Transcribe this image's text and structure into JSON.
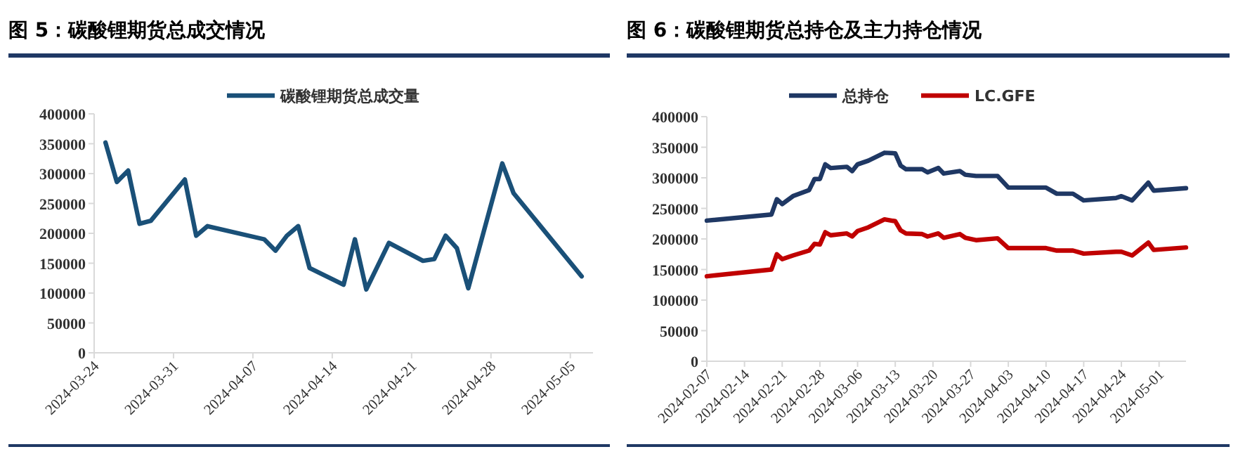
{
  "chart_data": [
    {
      "type": "line",
      "title": "图 5：碳酸锂期货总成交情况",
      "legend": "top",
      "x": [
        "2024-03-25",
        "2024-03-26",
        "2024-03-27",
        "2024-03-28",
        "2024-03-29",
        "2024-04-01",
        "2024-04-02",
        "2024-04-03",
        "2024-04-08",
        "2024-04-09",
        "2024-04-10",
        "2024-04-11",
        "2024-04-12",
        "2024-04-15",
        "2024-04-16",
        "2024-04-17",
        "2024-04-19",
        "2024-04-22",
        "2024-04-23",
        "2024-04-24",
        "2024-04-25",
        "2024-04-26",
        "2024-04-29",
        "2024-04-30",
        "2024-05-06"
      ],
      "xlim": [
        "2024-03-24",
        "2024-05-07"
      ],
      "xticks": [
        "2024-03-24",
        "2024-03-31",
        "2024-04-07",
        "2024-04-14",
        "2024-04-21",
        "2024-04-28",
        "2024-05-05"
      ],
      "ylim": [
        0,
        400000
      ],
      "yticks": [
        0,
        50000,
        100000,
        150000,
        200000,
        250000,
        300000,
        350000,
        400000
      ],
      "series": [
        {
          "name": "碳酸锂期货总成交量",
          "color": "#1a5078",
          "values": [
            352000,
            286000,
            305000,
            216000,
            221000,
            290000,
            196000,
            212000,
            190000,
            171000,
            196000,
            212000,
            142000,
            114000,
            190000,
            106000,
            184000,
            154000,
            157000,
            196000,
            175000,
            108000,
            317000,
            267000,
            128000
          ]
        }
      ]
    },
    {
      "type": "line",
      "title": "图 6：碳酸锂期货总持仓及主力持仓情况",
      "legend": "top",
      "x": [
        "2024-02-07",
        "2024-02-19",
        "2024-02-20",
        "2024-02-21",
        "2024-02-23",
        "2024-02-26",
        "2024-02-27",
        "2024-02-28",
        "2024-02-29",
        "2024-03-01",
        "2024-03-04",
        "2024-03-05",
        "2024-03-06",
        "2024-03-08",
        "2024-03-11",
        "2024-03-13",
        "2024-03-14",
        "2024-03-15",
        "2024-03-18",
        "2024-03-19",
        "2024-03-21",
        "2024-03-22",
        "2024-03-25",
        "2024-03-26",
        "2024-03-28",
        "2024-04-01",
        "2024-04-03",
        "2024-04-10",
        "2024-04-12",
        "2024-04-15",
        "2024-04-17",
        "2024-04-23",
        "2024-04-24",
        "2024-04-26",
        "2024-04-29",
        "2024-04-30",
        "2024-05-06"
      ],
      "xlim": [
        "2024-02-07",
        "2024-05-06"
      ],
      "xticks": [
        "2024-02-07",
        "2024-02-14",
        "2024-02-21",
        "2024-02-28",
        "2024-03-06",
        "2024-03-13",
        "2024-03-20",
        "2024-03-27",
        "2024-04-03",
        "2024-04-10",
        "2024-04-17",
        "2024-04-24",
        "2024-05-01"
      ],
      "ylim": [
        0,
        400000
      ],
      "yticks": [
        0,
        50000,
        100000,
        150000,
        200000,
        250000,
        300000,
        350000,
        400000
      ],
      "series": [
        {
          "name": "总持仓",
          "color": "#1f3864",
          "values": [
            230000,
            240000,
            265000,
            257000,
            270000,
            280000,
            298000,
            298000,
            322000,
            316000,
            318000,
            311000,
            322000,
            328000,
            341000,
            340000,
            320000,
            314000,
            314000,
            309000,
            316000,
            307000,
            311000,
            305000,
            303000,
            303000,
            284000,
            284000,
            274000,
            274000,
            263000,
            267000,
            270000,
            263000,
            292000,
            279000,
            283000
          ]
        },
        {
          "name": "LC.GFE",
          "color": "#c00000",
          "values": [
            139000,
            150000,
            175000,
            167000,
            173000,
            181000,
            192000,
            191000,
            211000,
            206000,
            209000,
            204000,
            213000,
            219000,
            232000,
            229000,
            214000,
            209000,
            208000,
            204000,
            209000,
            202000,
            208000,
            202000,
            198000,
            201000,
            185000,
            185000,
            181000,
            181000,
            176000,
            179000,
            179000,
            173000,
            194000,
            182000,
            186000
          ]
        }
      ]
    }
  ]
}
